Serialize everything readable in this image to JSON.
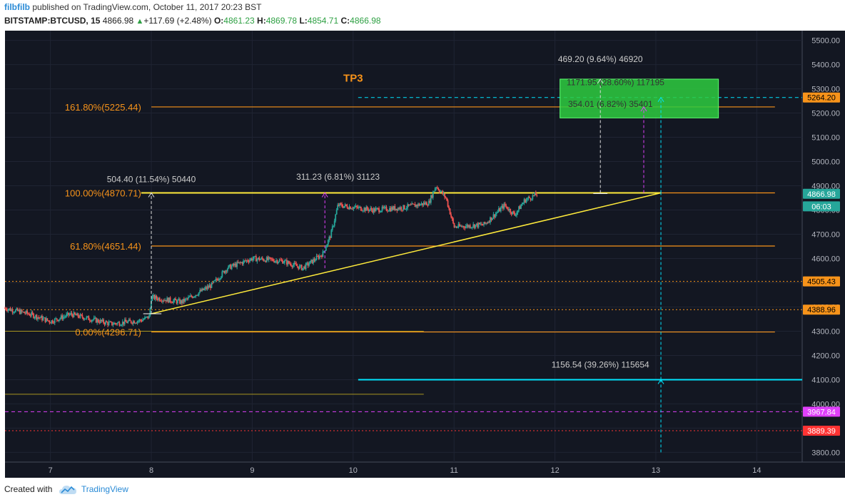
{
  "header": {
    "username": "filbfilb",
    "published": "published on TradingView.com, October 11, 2017 20:23 BST",
    "symbol": "BITSTAMP:BTCUSD, 15",
    "last": "4866.98",
    "change": "+117.69 (+2.48%)",
    "o_label": "O:",
    "o": "4861.23",
    "h_label": "H:",
    "h": "4869.78",
    "l_label": "L:",
    "l": "4854.71",
    "c_label": "C:",
    "c": "4866.98"
  },
  "footer": {
    "created_with": "Created with",
    "brand": "TradingView"
  },
  "colors": {
    "background": "#131722",
    "fib": "#f7931a",
    "trend": "#ffeb3b",
    "cyan": "#00e5ff",
    "magenta": "#e040fb",
    "red": "#ff3333",
    "green_box": "#2ecc40",
    "candle_up": "#26a69a",
    "candle_down": "#ef5350"
  },
  "chart_data": {
    "type": "candlestick",
    "ylim": [
      3760,
      5540
    ],
    "xlim": [
      6.55,
      14.45
    ],
    "y_ticks": [
      3800,
      3900,
      4000,
      4100,
      4200,
      4300,
      4400,
      4500,
      4600,
      4700,
      4800,
      4900,
      5000,
      5100,
      5200,
      5300,
      5400,
      5500
    ],
    "y_tick_labels": [
      "3800.00",
      "3900.00",
      "4000.00",
      "4100.00",
      "4200.00",
      "4300.00",
      "4400.00",
      "4500.00",
      "4600.00",
      "4700.00",
      "4800.00",
      "4900.00",
      "5000.00",
      "5100.00",
      "5200.00",
      "5300.00",
      "5400.00",
      "5500.00"
    ],
    "x_ticks": [
      7,
      8,
      9,
      10,
      11,
      12,
      13,
      14
    ],
    "x_tick_labels": [
      "7",
      "8",
      "9",
      "10",
      "11",
      "12",
      "13",
      "14"
    ],
    "price_path": [
      [
        6.55,
        4395
      ],
      [
        6.8,
        4370
      ],
      [
        7.0,
        4340
      ],
      [
        7.2,
        4370
      ],
      [
        7.4,
        4350
      ],
      [
        7.6,
        4330
      ],
      [
        7.9,
        4345
      ],
      [
        7.98,
        4360
      ],
      [
        8.0,
        4440
      ],
      [
        8.3,
        4420
      ],
      [
        8.6,
        4490
      ],
      [
        8.75,
        4560
      ],
      [
        9.0,
        4600
      ],
      [
        9.3,
        4590
      ],
      [
        9.5,
        4560
      ],
      [
        9.7,
        4620
      ],
      [
        9.78,
        4700
      ],
      [
        9.85,
        4820
      ],
      [
        10.2,
        4800
      ],
      [
        10.5,
        4810
      ],
      [
        10.75,
        4830
      ],
      [
        10.82,
        4900
      ],
      [
        10.92,
        4850
      ],
      [
        11.0,
        4730
      ],
      [
        11.3,
        4740
      ],
      [
        11.5,
        4820
      ],
      [
        11.6,
        4780
      ],
      [
        11.7,
        4840
      ],
      [
        11.83,
        4866.98
      ]
    ],
    "fib_levels": [
      {
        "label": "161.80%(5225.44)",
        "value": 5225.44
      },
      {
        "label": "100.00%(4870.71)",
        "value": 4870.71
      },
      {
        "label": "61.80%(4651.44)",
        "value": 4651.44
      },
      {
        "label": "0.00%(4296.71)",
        "value": 4296.71
      }
    ],
    "price_labels": [
      {
        "text": "5264.20",
        "value": 5264.2,
        "color": "#f7931a"
      },
      {
        "text": "4866.98",
        "value": 4866.98,
        "color": "#26a69a"
      },
      {
        "text": "06:03",
        "value": 4815,
        "color": "#26a69a"
      },
      {
        "text": "4505.43",
        "value": 4505.43,
        "color": "#f7931a"
      },
      {
        "text": "4388.96",
        "value": 4388.96,
        "color": "#f7931a"
      },
      {
        "text": "3967.84",
        "value": 3967.84,
        "color": "#e040fb"
      },
      {
        "text": "3889.39",
        "value": 3889.39,
        "color": "#ff3333"
      }
    ],
    "horizontal_lines": [
      {
        "value": 5264.2,
        "x1": 10.05,
        "style": "dashed",
        "color": "#00e5ff"
      },
      {
        "value": 4100,
        "x1": 10.05,
        "style": "solid",
        "color": "#00e5ff"
      },
      {
        "value": 4505.43,
        "x1": 6.55,
        "style": "dotted",
        "color": "#f7931a"
      },
      {
        "value": 4388.96,
        "x1": 6.55,
        "style": "dotted",
        "color": "#f7931a"
      },
      {
        "value": 3967.84,
        "x1": 6.55,
        "style": "dashed",
        "color": "#e040fb"
      },
      {
        "value": 3889.39,
        "x1": 6.55,
        "style": "dotted",
        "color": "#ff3333"
      }
    ],
    "annotations": [
      {
        "text": "TP3",
        "x": 10.0,
        "y": 5330,
        "color": "#f7931a"
      },
      {
        "text": "504.40 (11.54%) 50440",
        "x": 8.0,
        "y": 4915,
        "color": "#cccccc"
      },
      {
        "text": "311.23 (6.81%) 31123",
        "x": 9.85,
        "y": 4925,
        "color": "#cccccc"
      },
      {
        "text": "469.20 (9.64%) 46920",
        "x": 12.45,
        "y": 5410,
        "color": "#cccccc"
      },
      {
        "text": "1171.95 (28.60%) 117195",
        "x": 12.6,
        "y": 5315,
        "color": "#333333"
      },
      {
        "text": "354.01 (6.82%) 35401",
        "x": 12.55,
        "y": 5225,
        "color": "#333333"
      },
      {
        "text": "1156.54 (39.26%) 115654",
        "x": 12.45,
        "y": 4150,
        "color": "#cccccc"
      }
    ]
  }
}
